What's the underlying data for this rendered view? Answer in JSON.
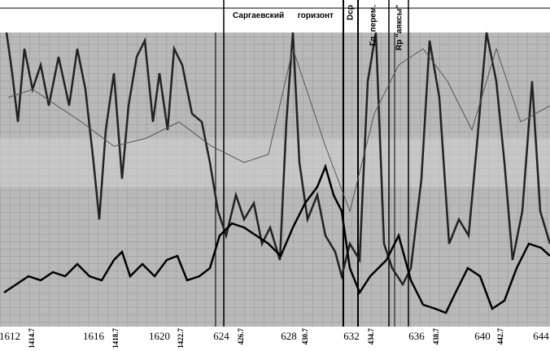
{
  "header": {
    "horizon": "Саргаевский      горизонт",
    "columns": [
      "Dср",
      "Гл. перем.",
      "Rp \"аяксы\""
    ]
  },
  "depth_scale": {
    "labels": [
      "1612",
      "1616",
      "1620",
      "624",
      "628",
      "632",
      "636",
      "640",
      "644"
    ],
    "sublabels": [
      "1414.7",
      "1418.7",
      "1422.7",
      "426.7",
      "430.7",
      "434.7",
      "438.7",
      "442.7"
    ]
  }
}
